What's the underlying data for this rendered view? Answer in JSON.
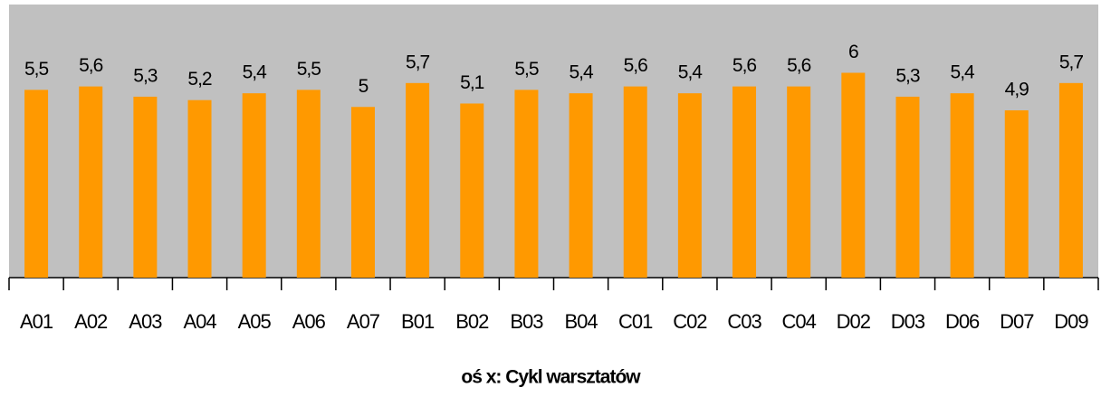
{
  "chart_data": {
    "type": "bar",
    "x_label": "oś x: Cykl warsztatów",
    "categories": [
      "A01",
      "A02",
      "A03",
      "A04",
      "A05",
      "A06",
      "A07",
      "B01",
      "B02",
      "B03",
      "B04",
      "C01",
      "C02",
      "C03",
      "C04",
      "D02",
      "D03",
      "D06",
      "D07",
      "D09"
    ],
    "values": [
      5.5,
      5.6,
      5.3,
      5.2,
      5.4,
      5.5,
      5,
      5.7,
      5.1,
      5.5,
      5.4,
      5.6,
      5.4,
      5.6,
      5.6,
      6,
      5.3,
      5.4,
      4.9,
      5.7
    ],
    "value_labels": [
      "5,5",
      "5,6",
      "5,3",
      "5,2",
      "5,4",
      "5,5",
      "5",
      "5,7",
      "5,1",
      "5,5",
      "5,4",
      "5,6",
      "5,4",
      "5,6",
      "5,6",
      "6",
      "5,3",
      "5,4",
      "4,9",
      "5,7"
    ],
    "color": "#ff9900",
    "ylim": [
      0,
      8
    ]
  }
}
